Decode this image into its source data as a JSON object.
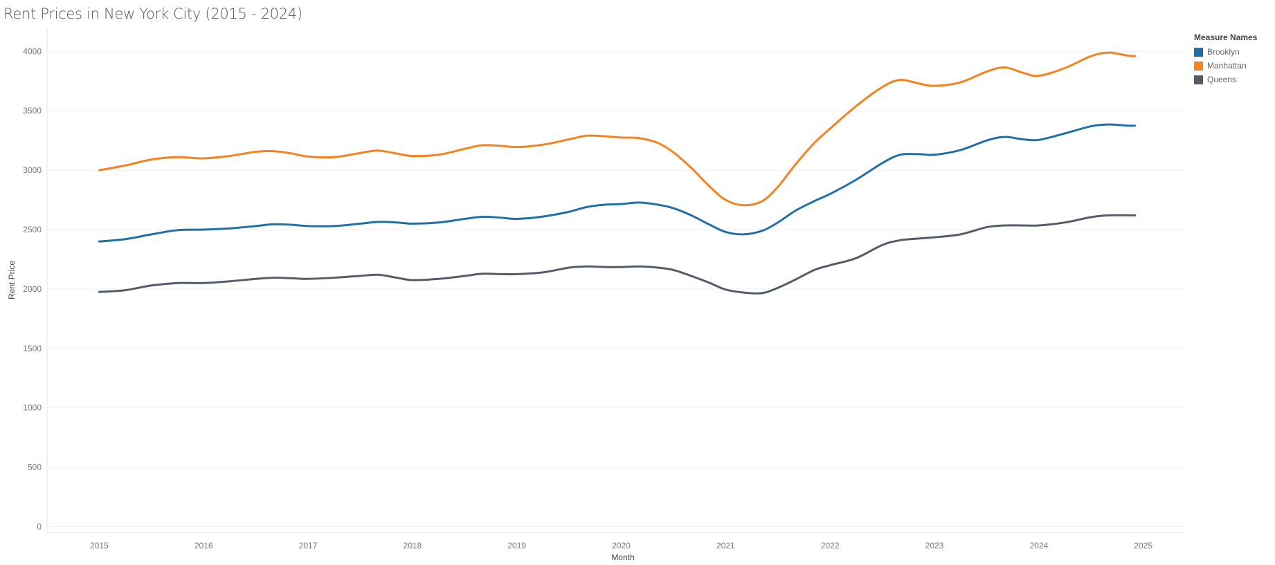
{
  "title": "Rent Prices in New York City (2015 - 2024)",
  "legend": {
    "title": "Measure Names",
    "items": [
      {
        "label": "Brooklyn",
        "color": "#1F6FA8"
      },
      {
        "label": "Manhattan",
        "color": "#F5821F"
      },
      {
        "label": "Queens",
        "color": "#535D69"
      }
    ]
  },
  "chart_data": {
    "type": "line",
    "title": "Rent Prices in New York City (2015 - 2024)",
    "xlabel": "Month",
    "ylabel": "Rent Price",
    "xlim": [
      2014.5,
      2025.4
    ],
    "ylim": [
      -50,
      4200
    ],
    "xticks": [
      "2015",
      "2016",
      "2017",
      "2018",
      "2019",
      "2020",
      "2021",
      "2022",
      "2023",
      "2024",
      "2025"
    ],
    "yticks": [
      0,
      500,
      1000,
      1500,
      2000,
      2500,
      3000,
      3500,
      4000
    ],
    "grid": true,
    "legend_position": "top-right",
    "series": [
      {
        "name": "Brooklyn",
        "color": "#1F6FA8",
        "points": [
          [
            2015,
            2400
          ],
          [
            2015.25,
            2420
          ],
          [
            2015.5,
            2460
          ],
          [
            2015.75,
            2495
          ],
          [
            2016,
            2500
          ],
          [
            2016.25,
            2510
          ],
          [
            2016.5,
            2530
          ],
          [
            2016.67,
            2545
          ],
          [
            2016.85,
            2540
          ],
          [
            2017,
            2530
          ],
          [
            2017.25,
            2530
          ],
          [
            2017.5,
            2550
          ],
          [
            2017.67,
            2565
          ],
          [
            2017.85,
            2560
          ],
          [
            2018,
            2550
          ],
          [
            2018.25,
            2560
          ],
          [
            2018.5,
            2590
          ],
          [
            2018.67,
            2608
          ],
          [
            2018.85,
            2600
          ],
          [
            2019,
            2590
          ],
          [
            2019.25,
            2610
          ],
          [
            2019.5,
            2650
          ],
          [
            2019.67,
            2690
          ],
          [
            2019.85,
            2710
          ],
          [
            2020,
            2715
          ],
          [
            2020.17,
            2728
          ],
          [
            2020.35,
            2710
          ],
          [
            2020.5,
            2680
          ],
          [
            2020.67,
            2620
          ],
          [
            2020.85,
            2540
          ],
          [
            2021,
            2480
          ],
          [
            2021.17,
            2460
          ],
          [
            2021.35,
            2490
          ],
          [
            2021.5,
            2560
          ],
          [
            2021.67,
            2660
          ],
          [
            2021.85,
            2740
          ],
          [
            2022,
            2800
          ],
          [
            2022.25,
            2920
          ],
          [
            2022.5,
            3060
          ],
          [
            2022.67,
            3130
          ],
          [
            2022.85,
            3135
          ],
          [
            2023,
            3130
          ],
          [
            2023.25,
            3170
          ],
          [
            2023.5,
            3250
          ],
          [
            2023.67,
            3280
          ],
          [
            2023.85,
            3260
          ],
          [
            2024,
            3255
          ],
          [
            2024.25,
            3310
          ],
          [
            2024.5,
            3370
          ],
          [
            2024.67,
            3385
          ],
          [
            2024.85,
            3375
          ],
          [
            2024.92,
            3375
          ]
        ]
      },
      {
        "name": "Manhattan",
        "color": "#F5821F",
        "points": [
          [
            2015,
            3000
          ],
          [
            2015.25,
            3040
          ],
          [
            2015.5,
            3090
          ],
          [
            2015.75,
            3110
          ],
          [
            2016,
            3100
          ],
          [
            2016.25,
            3120
          ],
          [
            2016.5,
            3155
          ],
          [
            2016.67,
            3160
          ],
          [
            2016.85,
            3140
          ],
          [
            2017,
            3115
          ],
          [
            2017.25,
            3110
          ],
          [
            2017.5,
            3145
          ],
          [
            2017.67,
            3165
          ],
          [
            2017.85,
            3140
          ],
          [
            2018,
            3120
          ],
          [
            2018.25,
            3130
          ],
          [
            2018.5,
            3180
          ],
          [
            2018.67,
            3210
          ],
          [
            2018.85,
            3205
          ],
          [
            2019,
            3195
          ],
          [
            2019.25,
            3215
          ],
          [
            2019.5,
            3260
          ],
          [
            2019.67,
            3290
          ],
          [
            2019.85,
            3285
          ],
          [
            2020,
            3275
          ],
          [
            2020.17,
            3270
          ],
          [
            2020.35,
            3230
          ],
          [
            2020.5,
            3150
          ],
          [
            2020.67,
            3020
          ],
          [
            2020.85,
            2860
          ],
          [
            2021,
            2750
          ],
          [
            2021.17,
            2705
          ],
          [
            2021.35,
            2740
          ],
          [
            2021.5,
            2860
          ],
          [
            2021.67,
            3050
          ],
          [
            2021.85,
            3230
          ],
          [
            2022,
            3350
          ],
          [
            2022.25,
            3540
          ],
          [
            2022.5,
            3700
          ],
          [
            2022.67,
            3760
          ],
          [
            2022.85,
            3730
          ],
          [
            2023,
            3710
          ],
          [
            2023.25,
            3740
          ],
          [
            2023.5,
            3830
          ],
          [
            2023.67,
            3865
          ],
          [
            2023.85,
            3820
          ],
          [
            2024,
            3795
          ],
          [
            2024.25,
            3860
          ],
          [
            2024.5,
            3960
          ],
          [
            2024.67,
            3990
          ],
          [
            2024.85,
            3965
          ],
          [
            2024.92,
            3960
          ]
        ]
      },
      {
        "name": "Queens",
        "color": "#535D69",
        "points": [
          [
            2015,
            1975
          ],
          [
            2015.25,
            1990
          ],
          [
            2015.5,
            2030
          ],
          [
            2015.75,
            2050
          ],
          [
            2016,
            2050
          ],
          [
            2016.25,
            2065
          ],
          [
            2016.5,
            2085
          ],
          [
            2016.67,
            2095
          ],
          [
            2016.85,
            2090
          ],
          [
            2017,
            2085
          ],
          [
            2017.25,
            2095
          ],
          [
            2017.5,
            2110
          ],
          [
            2017.67,
            2120
          ],
          [
            2017.85,
            2095
          ],
          [
            2018,
            2075
          ],
          [
            2018.25,
            2085
          ],
          [
            2018.5,
            2110
          ],
          [
            2018.67,
            2128
          ],
          [
            2018.85,
            2125
          ],
          [
            2019,
            2125
          ],
          [
            2019.25,
            2140
          ],
          [
            2019.5,
            2180
          ],
          [
            2019.67,
            2190
          ],
          [
            2019.85,
            2185
          ],
          [
            2020,
            2185
          ],
          [
            2020.17,
            2190
          ],
          [
            2020.35,
            2180
          ],
          [
            2020.5,
            2160
          ],
          [
            2020.67,
            2110
          ],
          [
            2020.85,
            2050
          ],
          [
            2021,
            1995
          ],
          [
            2021.17,
            1970
          ],
          [
            2021.35,
            1965
          ],
          [
            2021.5,
            2010
          ],
          [
            2021.67,
            2080
          ],
          [
            2021.85,
            2160
          ],
          [
            2022,
            2200
          ],
          [
            2022.25,
            2260
          ],
          [
            2022.5,
            2370
          ],
          [
            2022.67,
            2410
          ],
          [
            2022.85,
            2425
          ],
          [
            2023,
            2435
          ],
          [
            2023.25,
            2460
          ],
          [
            2023.5,
            2520
          ],
          [
            2023.67,
            2535
          ],
          [
            2023.85,
            2535
          ],
          [
            2024,
            2535
          ],
          [
            2024.25,
            2560
          ],
          [
            2024.5,
            2605
          ],
          [
            2024.67,
            2620
          ],
          [
            2024.85,
            2620
          ],
          [
            2024.92,
            2620
          ]
        ]
      }
    ]
  }
}
